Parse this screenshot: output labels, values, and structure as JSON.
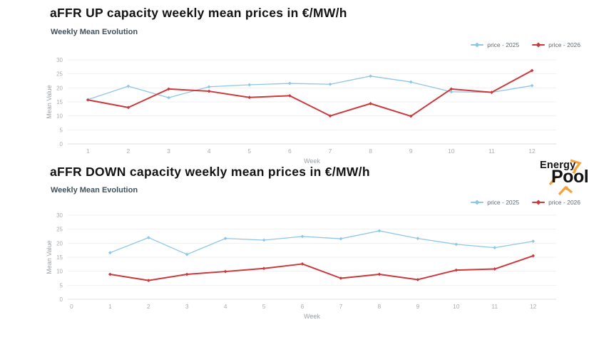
{
  "logo": {
    "line1": "Energy",
    "line2": "Pool",
    "accent_color": "#f2a33c",
    "text_color": "#131313"
  },
  "chart_data": [
    {
      "type": "line",
      "title": "aFFR UP capacity weekly mean prices in €/MW/h",
      "subtitle": "Weekly Mean Evolution",
      "xlabel": "Week",
      "ylabel": "Mean Value",
      "ylim": [
        0,
        30
      ],
      "xlim": [
        0.5,
        12.6
      ],
      "yticks": [
        0,
        5,
        10,
        15,
        20,
        25,
        30
      ],
      "xticks": [
        1,
        2,
        3,
        4,
        5,
        6,
        7,
        8,
        9,
        10,
        11,
        12
      ],
      "grid": true,
      "legend_position": "top-right",
      "x": [
        1,
        2,
        3,
        4,
        5,
        6,
        7,
        8,
        9,
        10,
        11,
        12
      ],
      "series": [
        {
          "name": "price - 2025",
          "color": "#8ec6e8",
          "line_width": 1.3,
          "values": [
            15.8,
            20.6,
            16.5,
            20.4,
            21.1,
            21.6,
            21.3,
            24.2,
            22.1,
            18.6,
            18.4,
            20.8
          ]
        },
        {
          "name": "price - 2026",
          "color": "#cc393d",
          "line_width": 2,
          "values": [
            15.7,
            13.0,
            19.6,
            18.8,
            16.6,
            17.2,
            10.0,
            14.4,
            9.9,
            19.6,
            18.4,
            26.2
          ]
        }
      ]
    },
    {
      "type": "line",
      "title": "aFFR DOWN capacity weekly mean prices in €/MW/h",
      "subtitle": "Weekly Mean Evolution",
      "xlabel": "Week",
      "ylabel": "Mean Value",
      "ylim": [
        0,
        30
      ],
      "xlim": [
        -0.1,
        12.6
      ],
      "yticks": [
        0,
        5,
        10,
        15,
        20,
        25,
        30
      ],
      "xticks": [
        0,
        1,
        2,
        3,
        4,
        5,
        6,
        7,
        8,
        9,
        10,
        11,
        12
      ],
      "grid": true,
      "legend_position": "top-right",
      "x": [
        1,
        2,
        3,
        4,
        5,
        6,
        7,
        8,
        9,
        10,
        11,
        12
      ],
      "series": [
        {
          "name": "price - 2025",
          "color": "#8ec6e8",
          "line_width": 1.3,
          "values": [
            16.6,
            22.0,
            16.0,
            21.7,
            21.1,
            22.4,
            21.6,
            24.4,
            21.7,
            19.6,
            18.4,
            20.7
          ]
        },
        {
          "name": "price - 2026",
          "color": "#cc393d",
          "line_width": 2,
          "values": [
            8.9,
            6.7,
            8.9,
            9.9,
            11.0,
            12.6,
            7.5,
            8.9,
            7.0,
            10.4,
            10.8,
            15.5
          ]
        }
      ]
    }
  ]
}
